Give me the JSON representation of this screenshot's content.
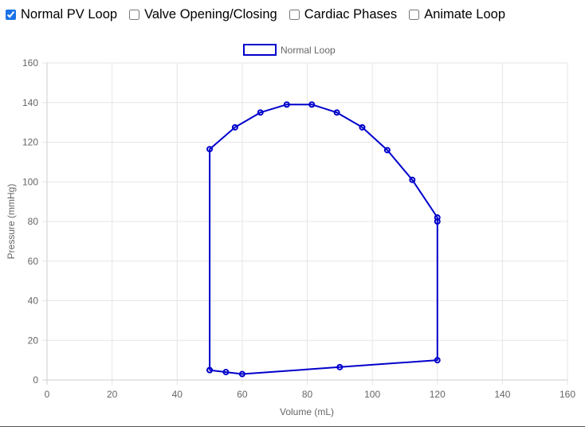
{
  "controls": [
    {
      "label": "Normal PV Loop",
      "checked": true
    },
    {
      "label": "Valve Opening/Closing",
      "checked": false
    },
    {
      "label": "Cardiac Phases",
      "checked": false
    },
    {
      "label": "Animate Loop",
      "checked": false
    }
  ],
  "colors": {
    "series": "#0000cc",
    "grid": "#e6e6e6",
    "tick_text": "#666666"
  },
  "chart_data": {
    "type": "line",
    "title": "",
    "xlabel": "Volume (mL)",
    "ylabel": "Pressure (mmHg)",
    "xlim": [
      0,
      160
    ],
    "ylim": [
      0,
      160
    ],
    "x_ticks": [
      0,
      20,
      40,
      60,
      80,
      100,
      120,
      140,
      160
    ],
    "y_ticks": [
      0,
      20,
      40,
      60,
      80,
      100,
      120,
      140,
      160
    ],
    "grid": true,
    "legend_position": "top-center",
    "series": [
      {
        "name": "Normal Loop",
        "x": [
          50,
          55,
          60,
          90,
          120,
          120,
          120,
          112.3,
          104.6,
          96.9,
          89.1,
          81.4,
          73.7,
          65.6,
          57.8,
          50,
          50
        ],
        "y": [
          5,
          4,
          3,
          6.5,
          10,
          80,
          82,
          101,
          116,
          127.5,
          135,
          139,
          139,
          135,
          127.5,
          116.5,
          5
        ]
      }
    ]
  }
}
